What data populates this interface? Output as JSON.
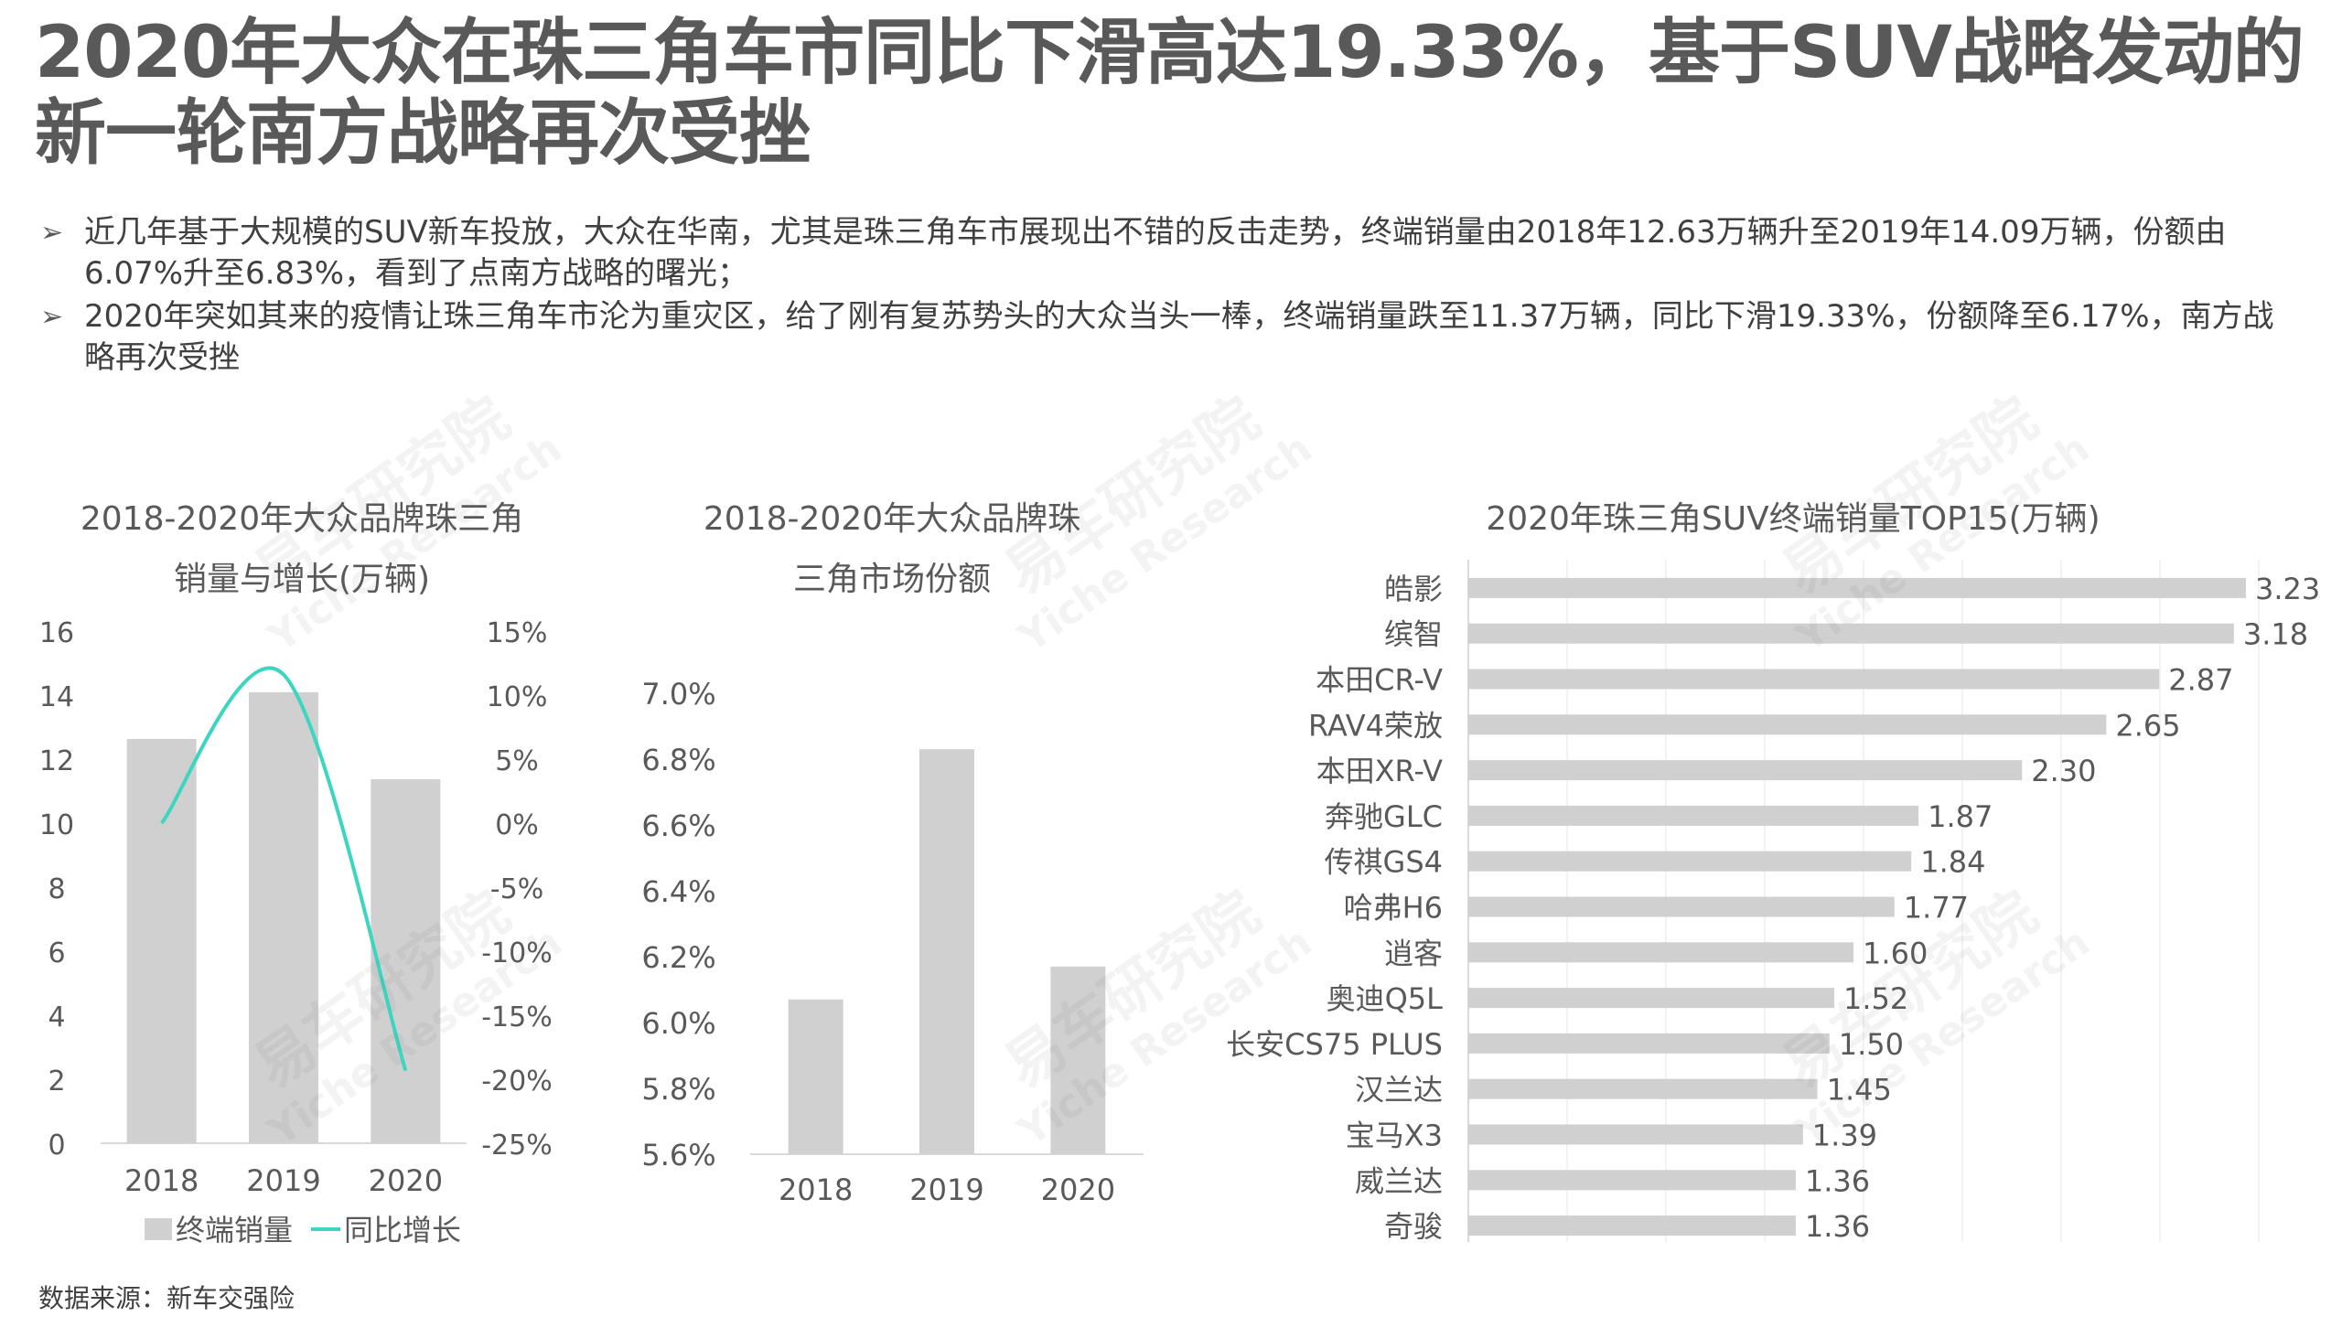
{
  "title": "2020年大众在珠三角车市同比下滑高达19.33%，基于SUV战略发动的新一轮南方战略再次受挫",
  "bullets": [
    "近几年基于大规模的SUV新车投放，大众在华南，尤其是珠三角车市展现出不错的反击走势，终端销量由2018年12.63万辆升至2019年14.09万辆，份额由6.07%升至6.83%，看到了点南方战略的曙光；",
    "2020年突如其来的疫情让珠三角车市沦为重灾区，给了刚有复苏势头的大众当头一棒，终端销量跌至11.37万辆，同比下滑19.33%，份额降至6.17%，南方战略再次受挫"
  ],
  "source": "数据来源：新车交强险",
  "watermark": "易车研究院 Yiche Research",
  "colors": {
    "bar": "#d0d0d0",
    "line": "#3cd6c0",
    "axis": "#d9d9d9",
    "text": "#595959"
  },
  "chart_data": [
    {
      "type": "bar+line",
      "title": "2018-2020年大众品牌珠三角销量与增长(万辆)",
      "categories": [
        "2018",
        "2019",
        "2020"
      ],
      "series": [
        {
          "name": "终端销量",
          "type": "bar",
          "axis": "left",
          "values": [
            12.63,
            14.09,
            11.37
          ]
        },
        {
          "name": "同比增长",
          "type": "line",
          "axis": "right",
          "values": [
            0.0,
            11.6,
            -19.33
          ]
        }
      ],
      "y_left": {
        "min": 0,
        "max": 16,
        "ticks": [
          "0",
          "2",
          "4",
          "6",
          "8",
          "10",
          "12",
          "14",
          "16"
        ]
      },
      "y_right": {
        "min": -25,
        "max": 15,
        "ticks": [
          "-25%",
          "-20%",
          "-15%",
          "-10%",
          "-5%",
          "0%",
          "5%",
          "10%",
          "15%"
        ]
      },
      "legend": "bottom"
    },
    {
      "type": "bar",
      "title": "2018-2020年大众品牌珠三角市场份额",
      "categories": [
        "2018",
        "2019",
        "2020"
      ],
      "values": [
        6.07,
        6.83,
        6.17
      ],
      "ylim": [
        5.6,
        7.0
      ],
      "ticks": [
        "5.6%",
        "5.8%",
        "6.0%",
        "6.2%",
        "6.4%",
        "6.6%",
        "6.8%",
        "7.0%"
      ]
    },
    {
      "type": "bar",
      "orientation": "horizontal",
      "title": "2020年珠三角SUV终端销量TOP15(万辆)",
      "categories": [
        "皓影",
        "缤智",
        "本田CR-V",
        "RAV4荣放",
        "本田XR-V",
        "奔驰GLC",
        "传祺GS4",
        "哈弗H6",
        "逍客",
        "奥迪Q5L",
        "长安CS75 PLUS",
        "汉兰达",
        "宝马X3",
        "威兰达",
        "奇骏"
      ],
      "values": [
        3.23,
        3.18,
        2.87,
        2.65,
        2.3,
        1.87,
        1.84,
        1.77,
        1.6,
        1.52,
        1.5,
        1.45,
        1.39,
        1.36,
        1.36
      ],
      "labels": [
        "3.23",
        "3.18",
        "2.87",
        "2.65",
        "2.30",
        "1.87",
        "1.84",
        "1.77",
        "1.60",
        "1.52",
        "1.50",
        "1.45",
        "1.39",
        "1.36",
        "1.36"
      ]
    }
  ]
}
